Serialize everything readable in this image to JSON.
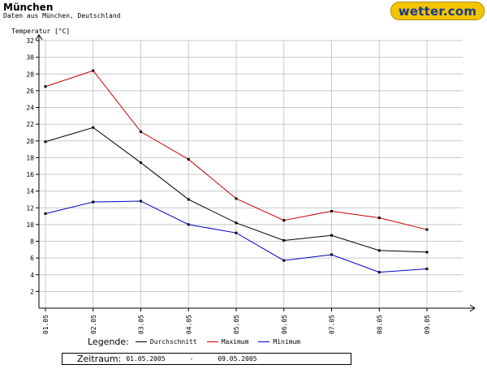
{
  "header": {
    "title": "München",
    "subtitle": "Daten aus München, Deutschland"
  },
  "logo": {
    "text": "wetter.com"
  },
  "legend": {
    "label": "Legende:",
    "items": [
      {
        "name": "Durchschnitt",
        "color": "#000000"
      },
      {
        "name": "Maximum",
        "color": "#cc0000"
      },
      {
        "name": "Minimum",
        "color": "#0000cc"
      }
    ]
  },
  "period": {
    "label": "Zeitraum:",
    "from": "01.05.2005",
    "separator": "-",
    "to": "09.05.2005"
  },
  "chart_data": {
    "type": "line",
    "ylabel": "Temperatur [°C]",
    "ylim": [
      0,
      32
    ],
    "yticks": [
      2,
      4,
      6,
      8,
      10,
      12,
      14,
      16,
      18,
      20,
      22,
      24,
      26,
      28,
      30,
      32
    ],
    "categories": [
      "01.05",
      "02.05",
      "03.05",
      "04.05",
      "05.05",
      "06.05",
      "07.05",
      "08.05",
      "09.05"
    ],
    "grid": true,
    "series": [
      {
        "name": "Durchschnitt",
        "color": "#000000",
        "values": [
          19.9,
          21.6,
          17.4,
          13.0,
          10.2,
          8.1,
          8.7,
          6.9,
          6.7
        ]
      },
      {
        "name": "Maximum",
        "color": "#cc0000",
        "values": [
          26.5,
          28.4,
          21.1,
          17.8,
          13.1,
          10.5,
          11.6,
          10.8,
          9.4
        ]
      },
      {
        "name": "Minimum",
        "color": "#0000cc",
        "values": [
          11.3,
          12.7,
          12.8,
          10.0,
          9.0,
          5.7,
          6.4,
          4.3,
          4.7
        ]
      }
    ]
  }
}
